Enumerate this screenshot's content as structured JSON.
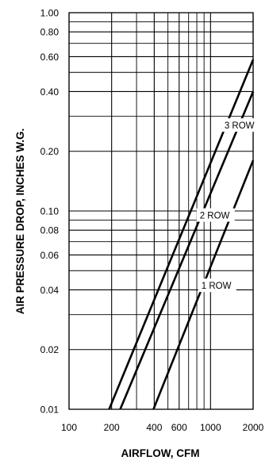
{
  "chart_data": {
    "type": "line",
    "xscale": "log",
    "yscale": "log",
    "xlim": [
      100,
      2000
    ],
    "ylim": [
      0.01,
      1.0
    ],
    "grid": true,
    "xlabel": "AIRFLOW, CFM",
    "ylabel": "AIR PRESSURE DROP, INCHES W.G.",
    "x_tick_labels": [
      "100",
      "200",
      "400",
      "600",
      "1000",
      "2000"
    ],
    "x_tick_values": [
      100,
      200,
      400,
      600,
      1000,
      2000
    ],
    "y_tick_labels": [
      "0.01",
      "0.02",
      "0.04",
      "0.06",
      "0.08",
      "0.10",
      "0.20",
      "0.40",
      "0.60",
      "0.80",
      "1.00"
    ],
    "y_tick_values": [
      0.01,
      0.02,
      0.04,
      0.06,
      0.08,
      0.1,
      0.2,
      0.4,
      0.6,
      0.8,
      1.0
    ],
    "x_grid_values": [
      100,
      200,
      300,
      400,
      500,
      600,
      700,
      800,
      900,
      1000,
      2000
    ],
    "y_grid_values": [
      0.01,
      0.02,
      0.03,
      0.04,
      0.05,
      0.06,
      0.07,
      0.08,
      0.09,
      0.1,
      0.2,
      0.3,
      0.4,
      0.5,
      0.6,
      0.7,
      0.8,
      0.9,
      1.0
    ],
    "series": [
      {
        "name": "3 ROW",
        "x": [
          192,
          2000
        ],
        "y": [
          0.01,
          0.58
        ]
      },
      {
        "name": "2 ROW",
        "x": [
          230,
          2000
        ],
        "y": [
          0.01,
          0.4
        ]
      },
      {
        "name": "1 ROW",
        "x": [
          395,
          2000
        ],
        "y": [
          0.01,
          0.18
        ]
      }
    ],
    "series_label_at_y": [
      0.27,
      0.095,
      0.042
    ]
  }
}
